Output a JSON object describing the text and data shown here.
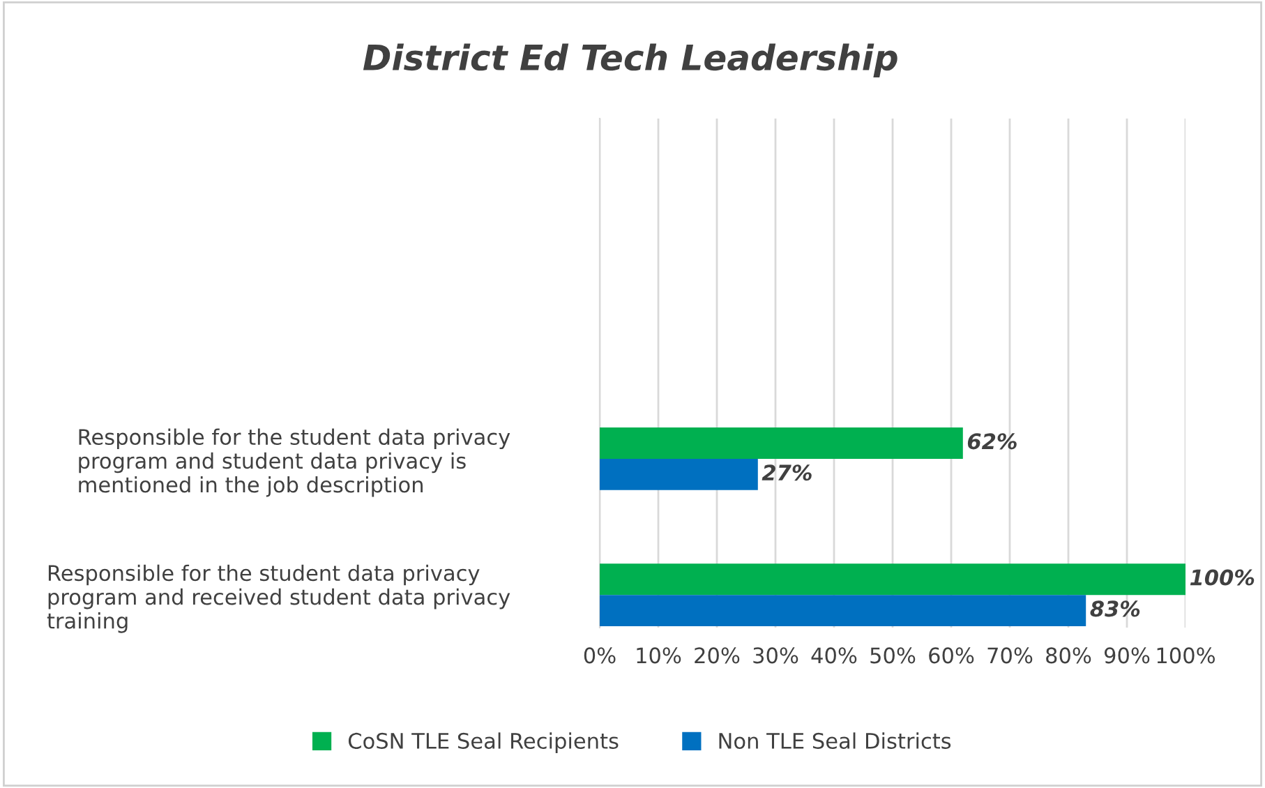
{
  "chart_data": {
    "type": "bar",
    "orientation": "horizontal",
    "title": "District Ed Tech Leadership",
    "categories": [
      "Responsible for the student data privacy program and student data privacy is mentioned in the job description",
      "Responsible for the student data privacy program and received student data privacy training"
    ],
    "series": [
      {
        "name": "CoSN TLE Seal Recipients",
        "color": "#00b050",
        "values": [
          62,
          100
        ],
        "value_labels": [
          "62%",
          "100%"
        ]
      },
      {
        "name": "Non TLE Seal Districts",
        "color": "#0070c0",
        "values": [
          27,
          83
        ],
        "value_labels": [
          "27%",
          "83%"
        ]
      }
    ],
    "xlim": [
      0,
      100
    ],
    "xticks": [
      {
        "value": 0,
        "label": "0%"
      },
      {
        "value": 10,
        "label": "10%"
      },
      {
        "value": 20,
        "label": "20%"
      },
      {
        "value": 30,
        "label": "30%"
      },
      {
        "value": 40,
        "label": "40%"
      },
      {
        "value": 50,
        "label": "50%"
      },
      {
        "value": 60,
        "label": "60%"
      },
      {
        "value": 70,
        "label": "70%"
      },
      {
        "value": 80,
        "label": "80%"
      },
      {
        "value": 90,
        "label": "90%"
      },
      {
        "value": 100,
        "label": "100%"
      }
    ],
    "grid": "x",
    "legend": "bottom"
  }
}
